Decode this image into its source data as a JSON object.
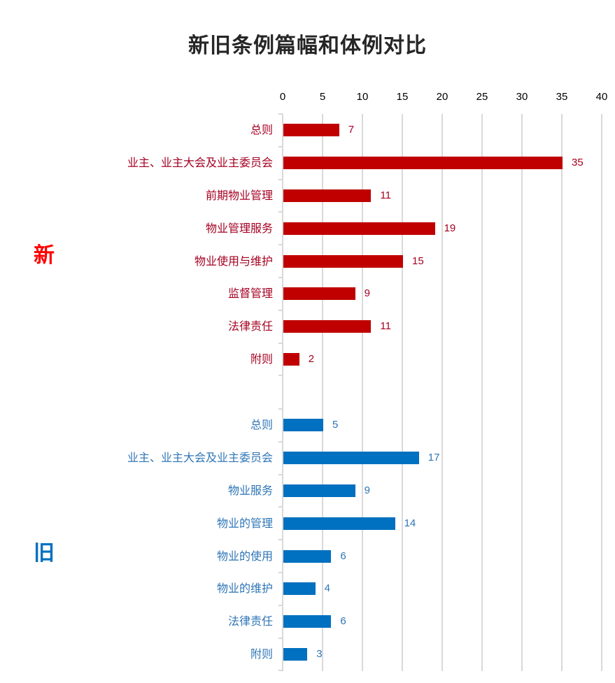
{
  "title": "新旧条例篇幅和体例对比",
  "side_labels": {
    "new": {
      "text": "新",
      "color": "#FF0000"
    },
    "old": {
      "text": "旧",
      "color": "#0070C0"
    }
  },
  "colors": {
    "new_bar": "#C00000",
    "new_text": "#A50021",
    "old_bar": "#0070C0",
    "old_text": "#2E75B6",
    "grid": "#D9D9D9"
  },
  "chart_data": [
    {
      "type": "bar",
      "orientation": "horizontal",
      "title": "新旧条例篇幅和体例对比",
      "series_name": "新",
      "categories": [
        "总则",
        "业主、业主大会及业主委员会",
        "前期物业管理",
        "物业管理服务",
        "物业使用与维护",
        "监督管理",
        "法律责任",
        "附则"
      ],
      "values": [
        7,
        35,
        11,
        19,
        15,
        9,
        11,
        2
      ],
      "xlim": [
        0,
        40
      ],
      "xticks": [
        0,
        5,
        10,
        15,
        20,
        25,
        30,
        35,
        40
      ],
      "xaxis_position": "top",
      "grid": true,
      "data_labels": true
    },
    {
      "type": "bar",
      "orientation": "horizontal",
      "series_name": "旧",
      "categories": [
        "总则",
        "业主、业主大会及业主委员会",
        "物业服务",
        "物业的管理",
        "物业的使用",
        "物业的维护",
        "法律责任",
        "附则"
      ],
      "values": [
        5,
        17,
        9,
        14,
        6,
        4,
        6,
        3
      ],
      "xlim": [
        0,
        40
      ],
      "xticks": [
        0,
        5,
        10,
        15,
        20,
        25,
        30,
        35,
        40
      ],
      "grid": true,
      "data_labels": true
    }
  ]
}
